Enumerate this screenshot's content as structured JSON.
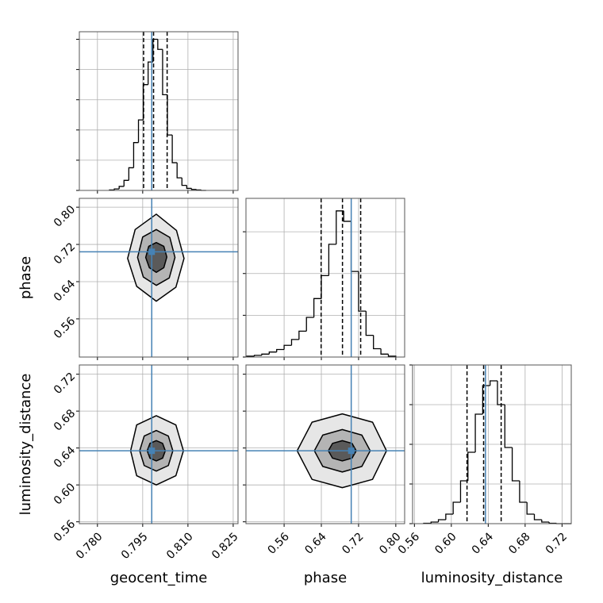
{
  "chart_data": [
    {
      "type": "histogram",
      "xlim": [
        0.774,
        0.8266
      ],
      "ylim": [
        0,
        315
      ],
      "xticks": [
        {
          "value": 0.78,
          "label": "0.780"
        },
        0.795,
        {
          "value": 0.81,
          "label": "0.810"
        },
        0.825
      ],
      "yticks": [
        0,
        60,
        120,
        180,
        240,
        300
      ],
      "xticklabels": false,
      "yticklabels": false,
      "grid": true,
      "bins": [
        0.784,
        0.7856,
        0.7872,
        0.7888,
        0.7904,
        0.792,
        0.7936,
        0.7952,
        0.7968,
        0.7984,
        0.8,
        0.8016,
        0.8032,
        0.8048,
        0.8064,
        0.808,
        0.8096,
        0.8112,
        0.8128,
        0.8144,
        0.816
      ],
      "counts": [
        1,
        3,
        8,
        20,
        45,
        95,
        140,
        210,
        255,
        300,
        280,
        190,
        110,
        55,
        25,
        10,
        4,
        2,
        1,
        0
      ],
      "quantiles": [
        0.7953,
        0.7986,
        0.8031
      ],
      "truth": 0.798,
      "color": "#000000",
      "truth_color": "#4682b4"
    },
    {
      "type": "contour",
      "xlim": [
        0.774,
        0.8266
      ],
      "ylim": [
        0.478,
        0.819
      ],
      "xticks": [
        {
          "value": 0.78,
          "label": "0.780"
        },
        0.795,
        {
          "value": 0.81,
          "label": "0.810"
        },
        0.825
      ],
      "yticks": [
        0.56,
        0.64,
        0.72,
        {
          "value": 0.8,
          "label": "0.80"
        }
      ],
      "xticklabels": false,
      "yticklabels": true,
      "grid": true,
      "ylabel": "phase",
      "contours": [
        {
          "color": "#e6e6e6",
          "x": [
            0.8087,
            0.8062,
            0.7995,
            0.7925,
            0.79,
            0.793,
            0.7995,
            0.806
          ],
          "y": [
            0.69,
            0.75,
            0.785,
            0.752,
            0.69,
            0.63,
            0.598,
            0.628
          ]
        },
        {
          "color": "#b4b4b4",
          "x": [
            0.8057,
            0.804,
            0.7995,
            0.795,
            0.7933,
            0.7952,
            0.7995,
            0.8038
          ],
          "y": [
            0.692,
            0.735,
            0.752,
            0.736,
            0.692,
            0.65,
            0.632,
            0.648
          ]
        },
        {
          "color": "#5a5a5a",
          "x": [
            0.803,
            0.802,
            0.7995,
            0.797,
            0.796,
            0.7972,
            0.7995,
            0.802
          ],
          "y": [
            0.693,
            0.716,
            0.724,
            0.716,
            0.692,
            0.67,
            0.66,
            0.67
          ]
        }
      ],
      "truth": [
        0.798,
        0.7042
      ],
      "truth_color": "#4682b4"
    },
    {
      "type": "histogram",
      "xlim": [
        0.478,
        0.819
      ],
      "ylim": [
        0,
        380
      ],
      "xticks": [
        0.56,
        0.64,
        0.72,
        {
          "value": 0.8,
          "label": "0.80"
        }
      ],
      "yticks": [
        0,
        100,
        200,
        300
      ],
      "xticklabels": false,
      "yticklabels": false,
      "grid": true,
      "bins": [
        0.48,
        0.496,
        0.512,
        0.528,
        0.544,
        0.56,
        0.576,
        0.592,
        0.608,
        0.624,
        0.64,
        0.656,
        0.672,
        0.688,
        0.704,
        0.72,
        0.736,
        0.752,
        0.768,
        0.784,
        0.8
      ],
      "counts": [
        2,
        4,
        7,
        12,
        18,
        28,
        42,
        62,
        95,
        140,
        195,
        270,
        350,
        325,
        205,
        110,
        52,
        20,
        7,
        2
      ],
      "quantiles": [
        0.6395,
        0.6854,
        0.7245
      ],
      "truth": 0.7042,
      "color": "#000000",
      "truth_color": "#4682b4"
    },
    {
      "type": "contour",
      "xlim": [
        0.774,
        0.8266
      ],
      "ylim": [
        0.558,
        0.73
      ],
      "xticks": [
        {
          "value": 0.78,
          "label": "0.780"
        },
        0.795,
        {
          "value": 0.81,
          "label": "0.810"
        },
        0.825
      ],
      "yticks": [
        0.56,
        {
          "value": 0.6,
          "label": "0.60"
        },
        0.64,
        0.68,
        0.72
      ],
      "xticklabels": true,
      "yticklabels": true,
      "grid": true,
      "xlabel": "geocent_time",
      "ylabel": "luminosity_distance",
      "contours": [
        {
          "color": "#e6e6e6",
          "x": [
            0.8085,
            0.806,
            0.7995,
            0.793,
            0.791,
            0.793,
            0.7995,
            0.806
          ],
          "y": [
            0.637,
            0.665,
            0.675,
            0.665,
            0.637,
            0.61,
            0.6,
            0.61
          ]
        },
        {
          "color": "#b4b4b4",
          "x": [
            0.805,
            0.8035,
            0.7995,
            0.7955,
            0.794,
            0.7955,
            0.7995,
            0.8035
          ],
          "y": [
            0.637,
            0.653,
            0.659,
            0.653,
            0.637,
            0.621,
            0.615,
            0.621
          ]
        },
        {
          "color": "#5a5a5a",
          "x": [
            0.8025,
            0.8016,
            0.7995,
            0.7974,
            0.7965,
            0.7974,
            0.7995,
            0.8016
          ],
          "y": [
            0.637,
            0.645,
            0.648,
            0.645,
            0.637,
            0.629,
            0.626,
            0.629
          ]
        }
      ],
      "truth": [
        0.798,
        0.637
      ],
      "truth_color": "#4682b4"
    },
    {
      "type": "contour",
      "xlim": [
        0.478,
        0.819
      ],
      "ylim": [
        0.558,
        0.73
      ],
      "xticks": [
        0.56,
        0.64,
        0.72,
        {
          "value": 0.8,
          "label": "0.80"
        }
      ],
      "yticks": [
        0.56,
        {
          "value": 0.6,
          "label": "0.60"
        },
        0.64,
        0.68,
        0.72
      ],
      "xticklabels": true,
      "yticklabels": false,
      "grid": true,
      "xlabel": "phase",
      "contours": [
        {
          "color": "#e6e6e6",
          "x": [
            0.78,
            0.75,
            0.685,
            0.62,
            0.588,
            0.62,
            0.685,
            0.75
          ],
          "y": [
            0.637,
            0.668,
            0.677,
            0.668,
            0.637,
            0.606,
            0.597,
            0.606
          ]
        },
        {
          "color": "#b4b4b4",
          "x": [
            0.745,
            0.727,
            0.685,
            0.643,
            0.625,
            0.643,
            0.685,
            0.727
          ],
          "y": [
            0.637,
            0.654,
            0.66,
            0.654,
            0.637,
            0.62,
            0.614,
            0.62
          ]
        },
        {
          "color": "#5a5a5a",
          "x": [
            0.715,
            0.706,
            0.685,
            0.664,
            0.655,
            0.664,
            0.685,
            0.706
          ],
          "y": [
            0.637,
            0.645,
            0.648,
            0.645,
            0.637,
            0.629,
            0.626,
            0.629
          ]
        }
      ],
      "truth": [
        0.7042,
        0.637
      ],
      "truth_color": "#4682b4"
    },
    {
      "type": "histogram",
      "xlim": [
        0.558,
        0.73
      ],
      "ylim": [
        0,
        400
      ],
      "xticks": [
        0.56,
        {
          "value": 0.6,
          "label": "0.60"
        },
        0.64,
        0.68,
        0.72
      ],
      "yticks": [
        0,
        100,
        200,
        300,
        400
      ],
      "xticklabels": true,
      "yticklabels": false,
      "grid": true,
      "xlabel": "luminosity_distance",
      "bins": [
        0.57,
        0.578,
        0.586,
        0.594,
        0.602,
        0.61,
        0.618,
        0.626,
        0.634,
        0.642,
        0.65,
        0.658,
        0.666,
        0.674,
        0.682,
        0.69,
        0.698,
        0.706,
        0.714,
        0.722,
        0.73
      ],
      "counts": [
        1,
        4,
        10,
        24,
        54,
        108,
        180,
        276,
        348,
        360,
        300,
        192,
        108,
        54,
        24,
        10,
        4,
        1,
        0,
        0
      ],
      "quantiles": [
        0.617,
        0.635,
        0.654
      ],
      "truth": 0.637,
      "color": "#000000",
      "truth_color": "#4682b4"
    }
  ]
}
